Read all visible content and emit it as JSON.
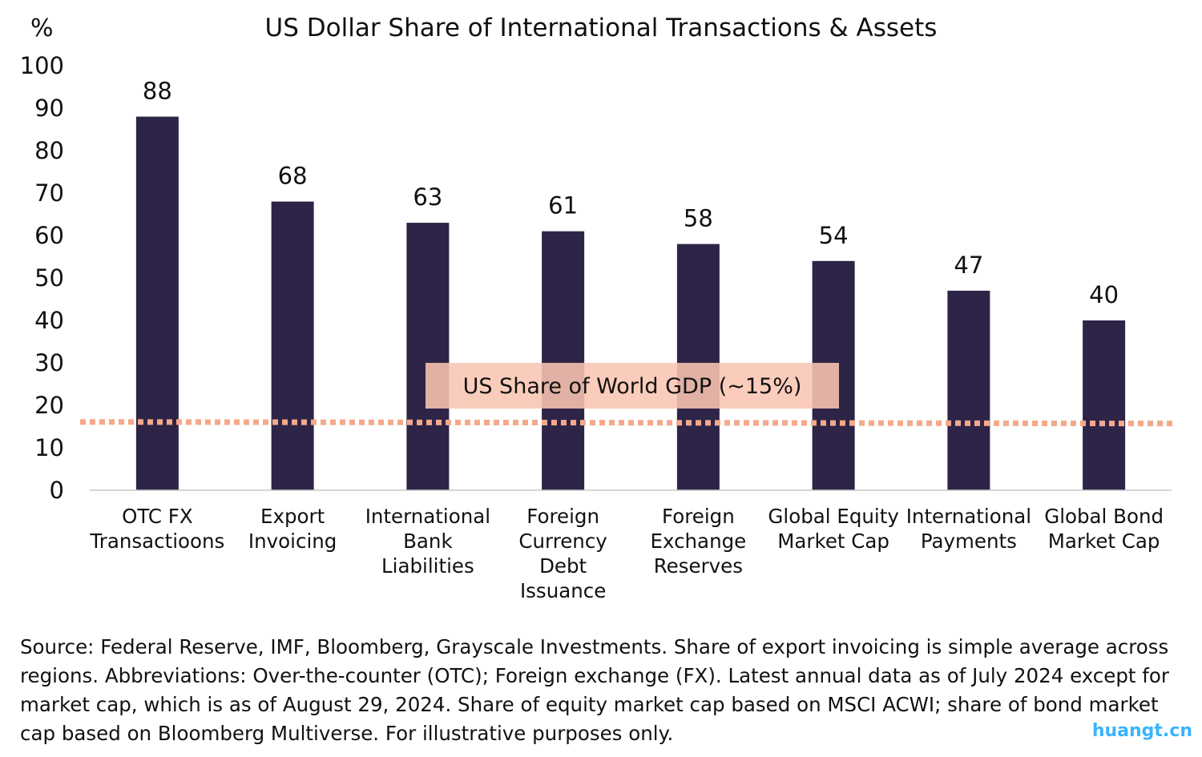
{
  "chart_data": {
    "type": "bar",
    "title": "US Dollar Share of International Transactions & Assets",
    "ylabel": "%",
    "xlabel": "",
    "ylim": [
      0,
      100
    ],
    "yticks": [
      0,
      10,
      20,
      30,
      40,
      50,
      60,
      70,
      80,
      90,
      100
    ],
    "grid": false,
    "categories": [
      [
        "OTC FX",
        "Transactioons"
      ],
      [
        "Export",
        "Invoicing"
      ],
      [
        "International",
        "Bank",
        "Liabilities"
      ],
      [
        "Foreign",
        "Currency",
        "Debt",
        "Issuance"
      ],
      [
        "Foreign",
        "Exchange",
        "Reserves"
      ],
      [
        "Global Equity",
        "Market Cap"
      ],
      [
        "International",
        "Payments"
      ],
      [
        "Global Bond",
        "Market Cap"
      ]
    ],
    "values": [
      88,
      68,
      63,
      61,
      58,
      54,
      47,
      40
    ],
    "data_labels": [
      "88",
      "68",
      "63",
      "61",
      "58",
      "54",
      "47",
      "40"
    ],
    "bar_color": "#2e2447",
    "reference_line": {
      "value": 16,
      "label": "US Share of World GDP (~15%)",
      "color": "#f4a98a",
      "label_bg": "#f9c5b2"
    }
  },
  "source_note": "Source: Federal Reserve, IMF, Bloomberg, Grayscale Investments. Share of export invoicing is simple average across regions. Abbreviations: Over-the-counter (OTC); Foreign exchange (FX). Latest annual data as of July 2024 except for market cap, which is as of August 29, 2024. Share of equity market cap based on MSCI ACWI; share of bond market cap based on Bloomberg Multiverse. For illustrative purposes only.",
  "watermark": "huangt.cn"
}
